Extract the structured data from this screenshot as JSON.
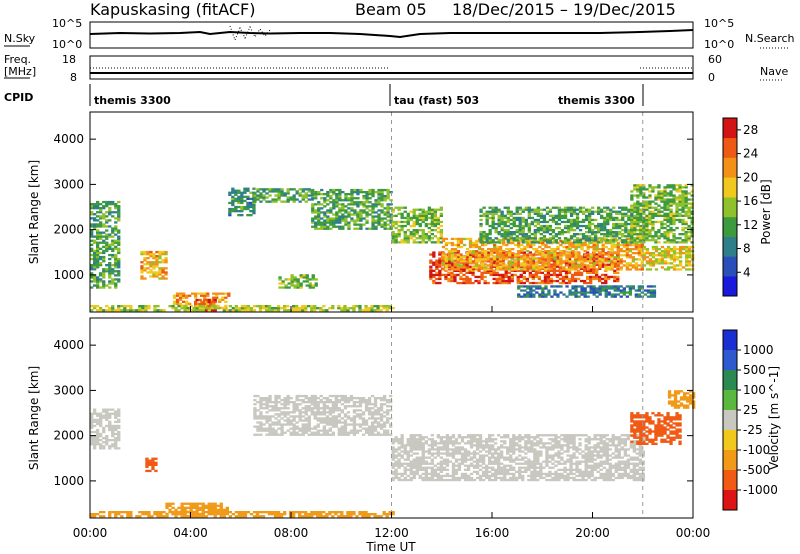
{
  "header": {
    "title": "Kapuskasing (fitACF)",
    "beam": "Beam 05",
    "date_range": "18/Dec/2015 – 19/Dec/2015"
  },
  "noise_panel": {
    "left_label": "N.Sky",
    "left_ticks": [
      "10^5",
      "10^0"
    ],
    "right_label": "N.Search",
    "right_ticks": [
      "10^5",
      "10^0"
    ]
  },
  "freq_panel": {
    "left_label": "Freq.",
    "left_unit": "[MHz]",
    "left_ticks": [
      "18",
      "8"
    ],
    "right_label": "Nave",
    "right_ticks": [
      "60",
      "0"
    ]
  },
  "cpid_panel": {
    "label": "CPID",
    "segments": [
      "themis 3300",
      "tau (fast) 503",
      "themis 3300"
    ]
  },
  "chart_data": [
    {
      "type": "heatmap",
      "xlabel": "Time UT",
      "ylabel": "Slant Range [km]",
      "x_ticks": [
        "00:00",
        "04:00",
        "08:00",
        "12:00",
        "16:00",
        "20:00",
        "00:00"
      ],
      "xlim_hours": [
        0,
        24
      ],
      "y_ticks": [
        1000,
        2000,
        3000,
        4000
      ],
      "ylim": [
        180,
        4600
      ],
      "colorbar": {
        "label": "Power [dB]",
        "ticks": [
          4,
          8,
          12,
          16,
          20,
          24,
          28
        ],
        "range": [
          0,
          30
        ],
        "colors": [
          "#1a1adc",
          "#2a4fb8",
          "#2e7f8a",
          "#3e9a3e",
          "#8fc22a",
          "#f0c81e",
          "#f29018",
          "#ee5a14",
          "#d21414"
        ]
      },
      "vertical_markers_hours": [
        12,
        22
      ],
      "regions": [
        {
          "t": [
            0.0,
            1.2
          ],
          "r": [
            700,
            2600
          ],
          "value": 12
        },
        {
          "t": [
            2.0,
            3.0
          ],
          "r": [
            900,
            1500
          ],
          "value": 20
        },
        {
          "t": [
            3.3,
            5.5
          ],
          "r": [
            250,
            600
          ],
          "value": 22
        },
        {
          "t": [
            4.2,
            5.0
          ],
          "r": [
            200,
            450
          ],
          "value": 28
        },
        {
          "t": [
            5.5,
            6.5
          ],
          "r": [
            2300,
            2900
          ],
          "value": 10
        },
        {
          "t": [
            6.5,
            8.8
          ],
          "r": [
            2600,
            2900
          ],
          "value": 12
        },
        {
          "t": [
            7.5,
            9.0
          ],
          "r": [
            700,
            1000
          ],
          "value": 14
        },
        {
          "t": [
            8.8,
            12.0
          ],
          "r": [
            2000,
            2900
          ],
          "value": 12
        },
        {
          "t": [
            12.0,
            14.0
          ],
          "r": [
            1700,
            2500
          ],
          "value": 14
        },
        {
          "t": [
            13.5,
            21.0
          ],
          "r": [
            800,
            1500
          ],
          "value": 26
        },
        {
          "t": [
            14.0,
            22.0
          ],
          "r": [
            1100,
            1800
          ],
          "value": 20
        },
        {
          "t": [
            15.5,
            22.0
          ],
          "r": [
            1700,
            2500
          ],
          "value": 12
        },
        {
          "t": [
            21.5,
            24.0
          ],
          "r": [
            1700,
            3000
          ],
          "value": 14
        },
        {
          "t": [
            22.0,
            24.0
          ],
          "r": [
            1100,
            1600
          ],
          "value": 18
        },
        {
          "t": [
            17.0,
            22.5
          ],
          "r": [
            500,
            750
          ],
          "value": 8
        },
        {
          "t": [
            0.0,
            12.0
          ],
          "r": [
            200,
            300
          ],
          "value": 16
        }
      ]
    },
    {
      "type": "heatmap",
      "xlabel": "Time UT",
      "ylabel": "Slant Range [km]",
      "x_ticks": [
        "00:00",
        "04:00",
        "08:00",
        "12:00",
        "16:00",
        "20:00",
        "00:00"
      ],
      "xlim_hours": [
        0,
        24
      ],
      "y_ticks": [
        1000,
        2000,
        3000,
        4000
      ],
      "ylim": [
        180,
        4600
      ],
      "colorbar": {
        "label": "Velocity [m s^-1]",
        "ticks": [
          "1000",
          "500",
          "100",
          "25",
          "-25",
          "-100",
          "-500",
          "-1000"
        ],
        "colors": [
          "#1a2ed2",
          "#2e5ad0",
          "#2a8a52",
          "#5ab83e",
          "#c8c8c0",
          "#f0c81e",
          "#f09a18",
          "#f05a14",
          "#dc1414"
        ]
      },
      "vertical_markers_hours": [
        12,
        22
      ],
      "regions": [
        {
          "t": [
            0.0,
            1.2
          ],
          "r": [
            1700,
            2600
          ],
          "value": 0
        },
        {
          "t": [
            2.2,
            2.6
          ],
          "r": [
            1200,
            1500
          ],
          "value": -500
        },
        {
          "t": [
            3.0,
            5.5
          ],
          "r": [
            250,
            500
          ],
          "value": -100
        },
        {
          "t": [
            6.5,
            12.0
          ],
          "r": [
            2000,
            2900
          ],
          "value": 0
        },
        {
          "t": [
            12.0,
            22.0
          ],
          "r": [
            1000,
            2000
          ],
          "value": 0
        },
        {
          "t": [
            21.5,
            23.5
          ],
          "r": [
            1800,
            2500
          ],
          "value": -500
        },
        {
          "t": [
            23.0,
            24.0
          ],
          "r": [
            2600,
            3000
          ],
          "value": -100
        },
        {
          "t": [
            0.0,
            12.0
          ],
          "r": [
            200,
            300
          ],
          "value": -100
        }
      ]
    }
  ]
}
